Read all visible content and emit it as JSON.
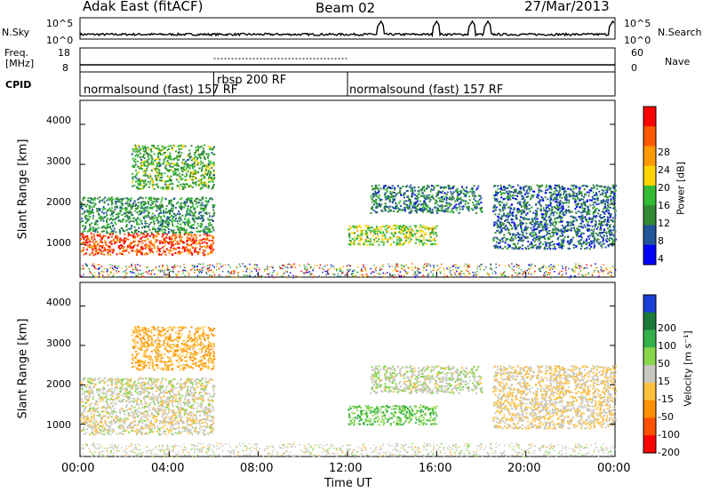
{
  "header": {
    "station": "Adak East (fitACF)",
    "beam": "Beam 02",
    "date": "27/Mar/2013"
  },
  "strips": {
    "nsky_label": "N.Sky",
    "nsky_ticks": [
      "10^5",
      "10^0"
    ],
    "nsearch_label": "N.Search",
    "nsearch_ticks": [
      "10^5",
      "10^0"
    ],
    "freq_label_1": "Freq.",
    "freq_label_2": "[MHz]",
    "freq_ticks": [
      "18",
      "8"
    ],
    "nave_label": "Nave",
    "nave_ticks": [
      "60",
      "0"
    ],
    "cpid_label": "CPID",
    "cpid_segments": [
      "normalsound (fast) 157 RF",
      "rbsp 200 RF",
      "normalsound (fast) 157 RF"
    ]
  },
  "panels": {
    "ylabel": "Slant Range [km]",
    "yticks": [
      "4000",
      "3000",
      "2000",
      "1000"
    ]
  },
  "power_scale": {
    "label": "Power [dB]",
    "ticks": [
      "28",
      "24",
      "20",
      "16",
      "12",
      "8",
      "4"
    ],
    "colors": [
      "#ff0000",
      "#ff5a00",
      "#ff9a00",
      "#ffd400",
      "#33bb33",
      "#338833",
      "#225599",
      "#0000ff"
    ]
  },
  "velocity_scale": {
    "label": "Velocity [m s⁻¹]",
    "ticks": [
      "200",
      "100",
      "50",
      "15",
      "-15",
      "-50",
      "-100",
      "-200"
    ],
    "colors": [
      "#1a3fd6",
      "#1a7a3a",
      "#33b04a",
      "#88d64a",
      "#c8c8c0",
      "#ffc040",
      "#ff9000",
      "#ff5000",
      "#ff0000"
    ]
  },
  "xaxis": {
    "label": "Time UT",
    "ticks": [
      "00:00",
      "04:00",
      "08:00",
      "12:00",
      "16:00",
      "20:00",
      "00:00"
    ]
  },
  "chart_data": {
    "type": "heatmap",
    "title": "Adak East (fitACF)  Beam 02  27/Mar/2013",
    "xlabel": "Time UT",
    "ylabel": "Slant Range [km]",
    "xlim": [
      0,
      24
    ],
    "ylim": [
      180,
      4600
    ],
    "mode_segments": [
      {
        "label": "normalsound (fast) 157 RF",
        "start": 0,
        "end": 6
      },
      {
        "label": "rbsp 200 RF",
        "start": 6,
        "end": 12
      },
      {
        "label": "normalsound (fast) 157 RF",
        "start": 12,
        "end": 24
      }
    ],
    "frequency_mhz": [
      {
        "start": 0,
        "end": 6,
        "value": 10.5
      },
      {
        "start": 6,
        "end": 12,
        "value": 11
      },
      {
        "start": 12,
        "end": 24,
        "value": 10.5
      }
    ],
    "noise_spikes_hours": [
      13.5,
      16,
      17.6,
      18.3,
      23.9
    ],
    "power_db_range": [
      0,
      30
    ],
    "velocity_range": [
      -200,
      200
    ],
    "echo_regions": [
      {
        "t0": 0,
        "t1": 6,
        "r0": 750,
        "r1": 1300,
        "power": 25,
        "velocity": -10
      },
      {
        "t0": 0,
        "t1": 6,
        "r0": 1300,
        "r1": 2200,
        "power": 10,
        "velocity": 0
      },
      {
        "t0": 2.3,
        "t1": 6,
        "r0": 2400,
        "r1": 3500,
        "power": 12,
        "velocity": -60
      },
      {
        "t0": 12,
        "t1": 16,
        "r0": 1000,
        "r1": 1500,
        "power": 15,
        "velocity": 60
      },
      {
        "t0": 13,
        "t1": 18,
        "r0": 1800,
        "r1": 2500,
        "power": 8,
        "velocity": 10
      },
      {
        "t0": 18.5,
        "t1": 24,
        "r0": 900,
        "r1": 2500,
        "power": 7,
        "velocity": -20
      }
    ]
  }
}
